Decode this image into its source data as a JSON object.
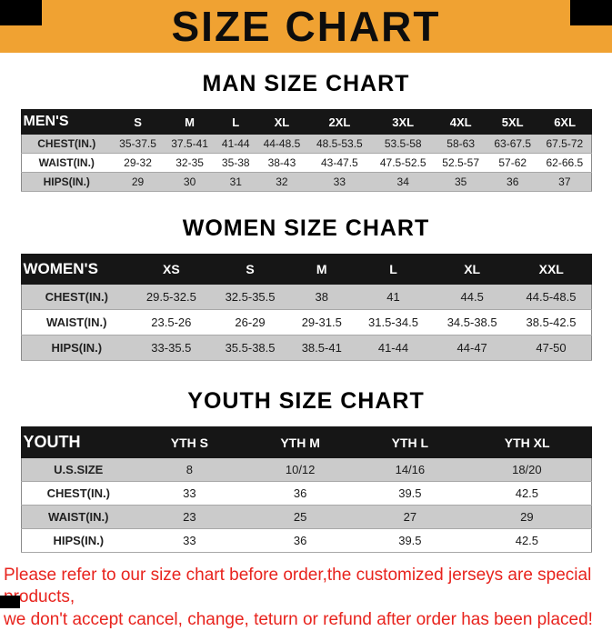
{
  "banner": {
    "title": "SIZE CHART"
  },
  "colors": {
    "banner_bg": "#F0A232",
    "table_header_bg": "#161616",
    "row_alt_gray": "#CBCBCB",
    "footer_text": "#E8231D",
    "corner_black": "#000000"
  },
  "sections": [
    {
      "heading": "MAN SIZE CHART",
      "table": {
        "header": [
          "MEN'S",
          "S",
          "M",
          "L",
          "XL",
          "2XL",
          "3XL",
          "4XL",
          "5XL",
          "6XL"
        ],
        "rows": [
          [
            "CHEST(IN.)",
            "35-37.5",
            "37.5-41",
            "41-44",
            "44-48.5",
            "48.5-53.5",
            "53.5-58",
            "58-63",
            "63-67.5",
            "67.5-72"
          ],
          [
            "WAIST(IN.)",
            "29-32",
            "32-35",
            "35-38",
            "38-43",
            "43-47.5",
            "47.5-52.5",
            "52.5-57",
            "57-62",
            "62-66.5"
          ],
          [
            "HIPS(IN.)",
            "29",
            "30",
            "31",
            "32",
            "33",
            "34",
            "35",
            "36",
            "37"
          ]
        ]
      }
    },
    {
      "heading": "WOMEN SIZE CHART",
      "table": {
        "header": [
          "WOMEN'S",
          "XS",
          "S",
          "M",
          "L",
          "XL",
          "XXL"
        ],
        "rows": [
          [
            "CHEST(IN.)",
            "29.5-32.5",
            "32.5-35.5",
            "38",
            "41",
            "44.5",
            "44.5-48.5"
          ],
          [
            "WAIST(IN.)",
            "23.5-26",
            "26-29",
            "29-31.5",
            "31.5-34.5",
            "34.5-38.5",
            "38.5-42.5"
          ],
          [
            "HIPS(IN.)",
            "33-35.5",
            "35.5-38.5",
            "38.5-41",
            "41-44",
            "44-47",
            "47-50"
          ]
        ]
      }
    },
    {
      "heading": "YOUTH SIZE CHART",
      "table": {
        "header": [
          "YOUTH",
          "YTH S",
          "YTH M",
          "YTH L",
          "YTH XL"
        ],
        "rows": [
          [
            "U.S.SIZE",
            "8",
            "10/12",
            "14/16",
            "18/20"
          ],
          [
            "CHEST(IN.)",
            "33",
            "36",
            "39.5",
            "42.5"
          ],
          [
            "WAIST(IN.)",
            "23",
            "25",
            "27",
            "29"
          ],
          [
            "HIPS(IN.)",
            "33",
            "36",
            "39.5",
            "42.5"
          ]
        ]
      }
    }
  ],
  "footer": {
    "line1": "Please refer to our size chart before order,the customized jerseys are special products,",
    "line2": "we don't accept cancel, change, teturn or refund after order has been placed!"
  }
}
